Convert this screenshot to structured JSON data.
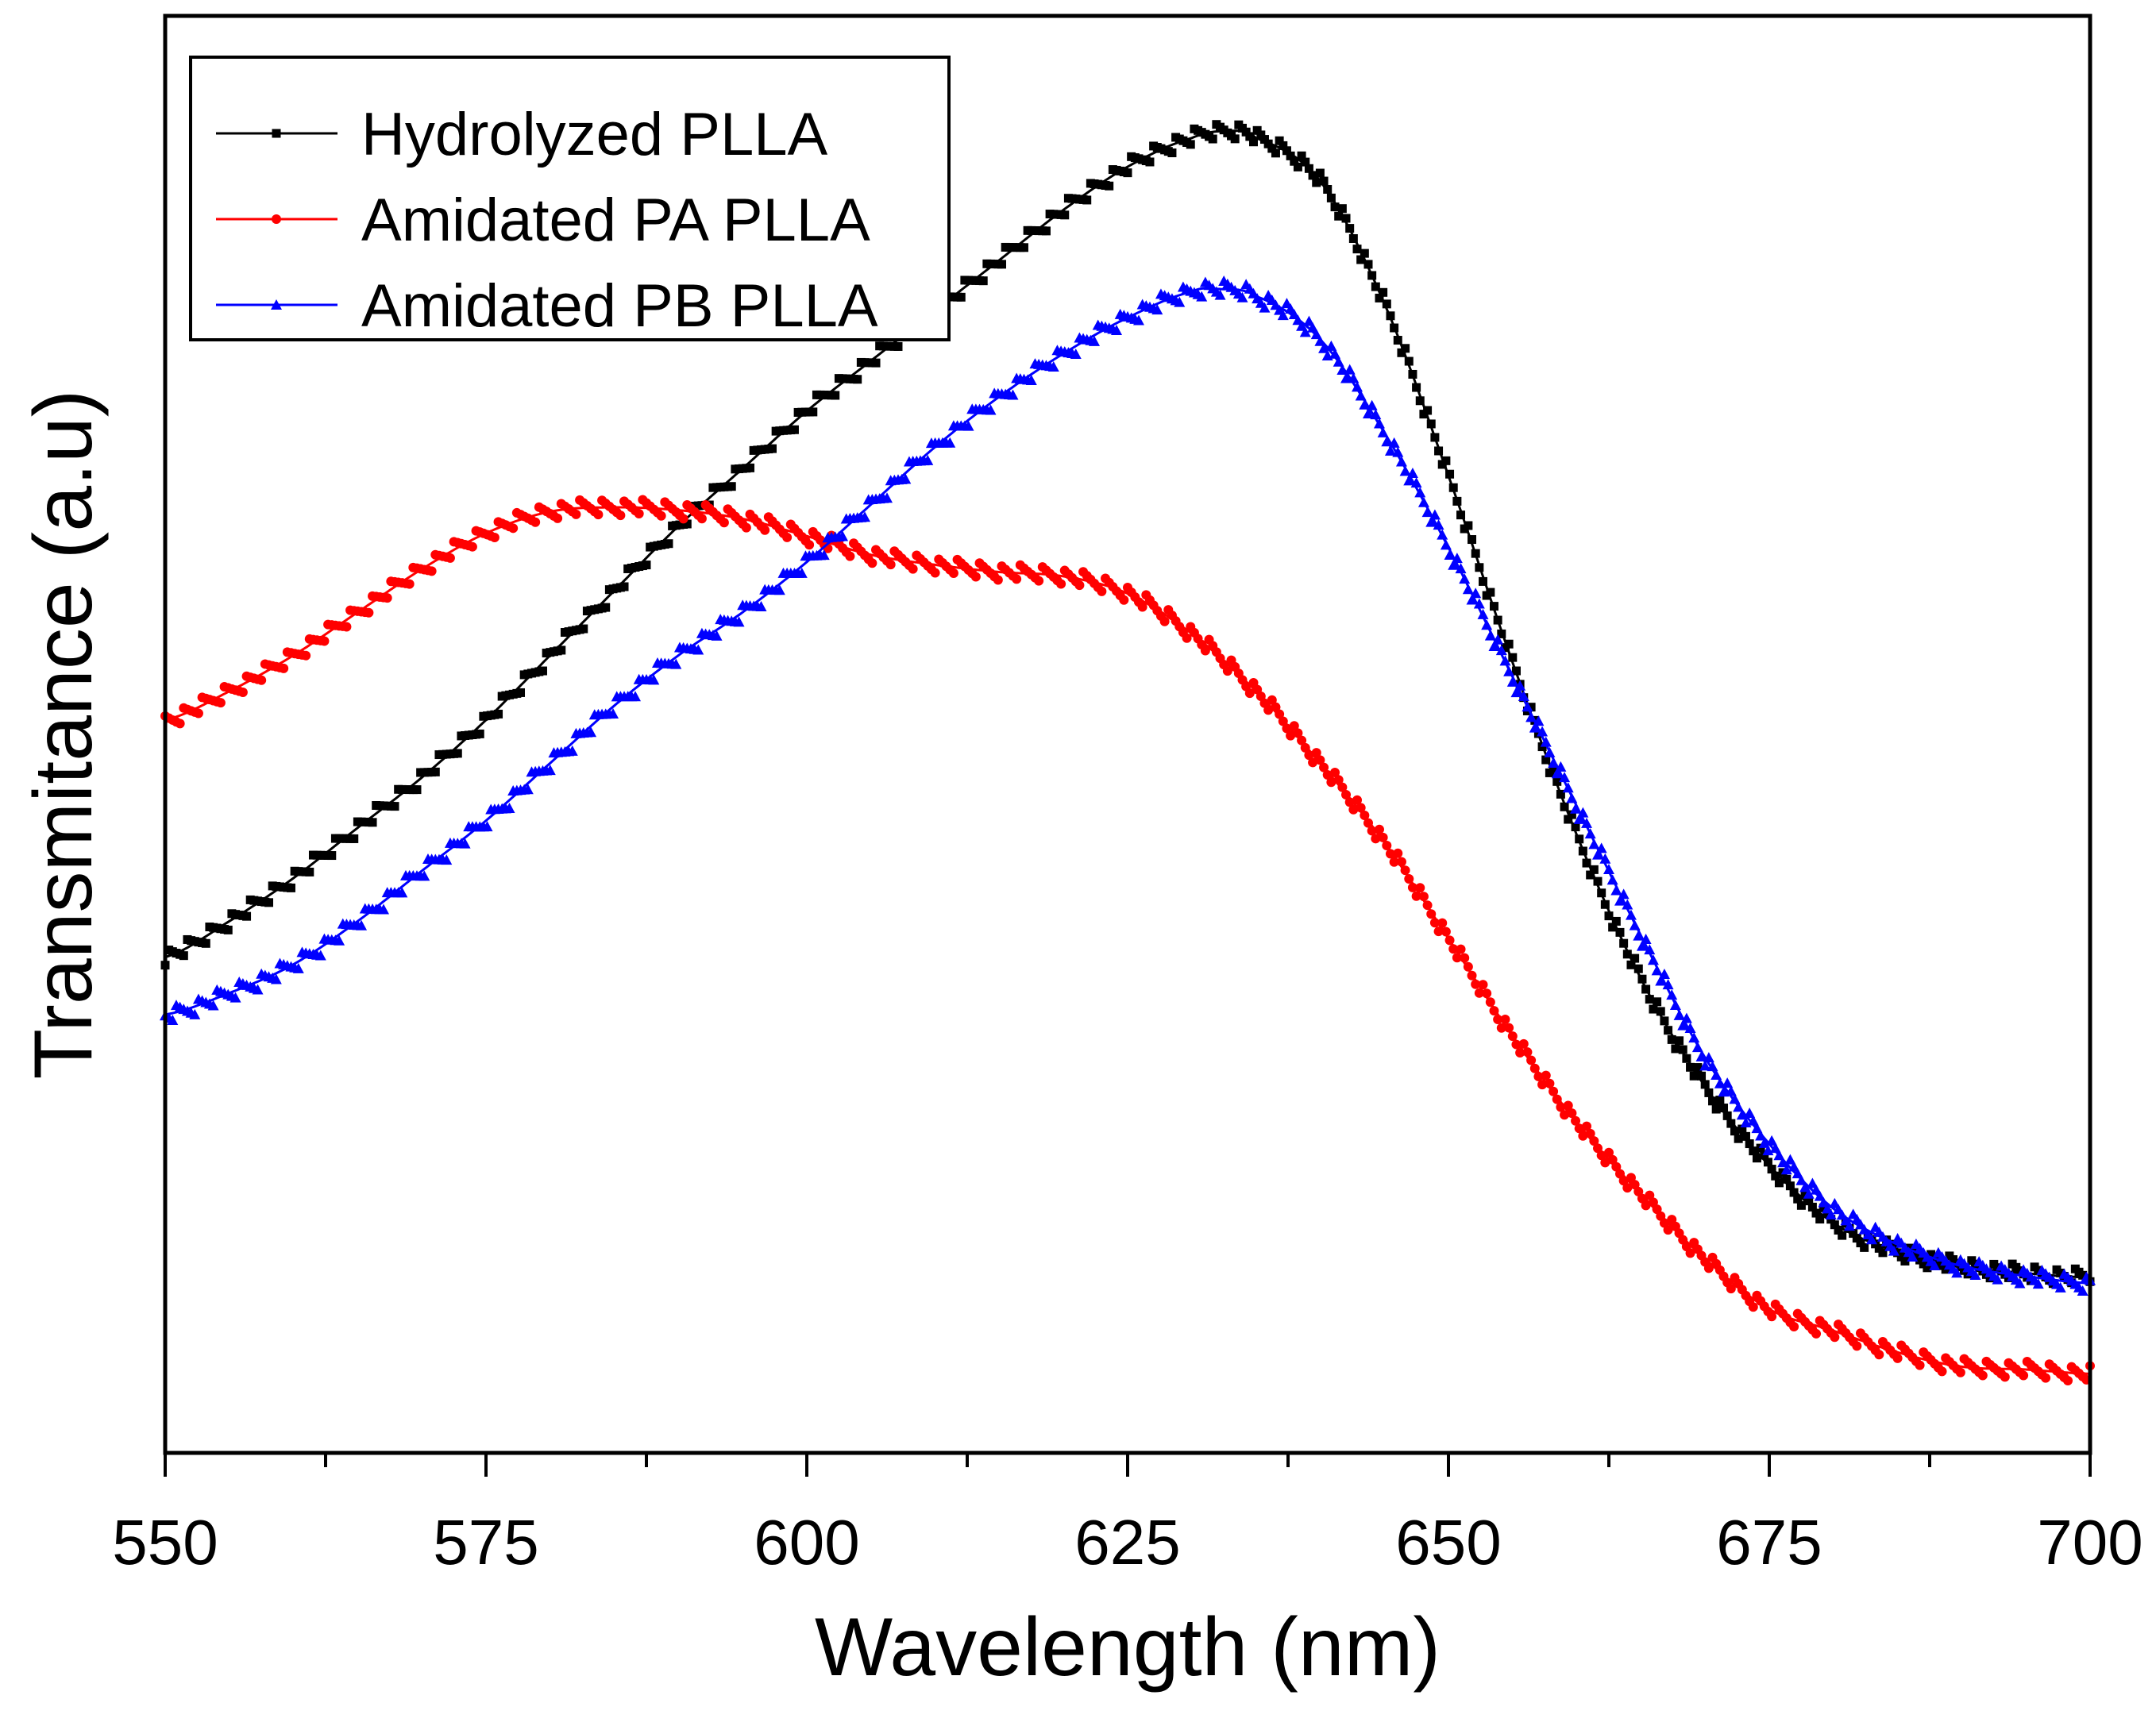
{
  "chart_data": {
    "type": "scatter",
    "title": "",
    "xlabel": "Wavelength (nm)",
    "ylabel": "Transmitance (a.u)",
    "xlim": [
      550,
      700
    ],
    "ylim": [
      0,
      100
    ],
    "xticks": [
      550,
      575,
      600,
      625,
      650,
      675,
      700
    ],
    "xtick_labels": [
      "550",
      "575",
      "600",
      "625",
      "650",
      "675",
      "700"
    ],
    "yticks_visible": false,
    "grid": false,
    "legend_position": "top-left",
    "series": [
      {
        "name": "Hydrolyzed PLLA",
        "color": "#000000",
        "marker": "square",
        "x": [
          550,
          555,
          560,
          565,
          570,
          575,
          580,
          585,
          590,
          595,
          600,
          605,
          610,
          615,
          620,
          625,
          630,
          633,
          635,
          640,
          645,
          650,
          655,
          660,
          665,
          670,
          675,
          680,
          685,
          690,
          695,
          700
        ],
        "y": [
          34.5,
          37,
          40,
          43.5,
          47,
          51,
          55.5,
          60,
          64.5,
          68.5,
          72.5,
          76,
          79.5,
          83,
          86.5,
          89.5,
          91.5,
          92,
          91.5,
          88.5,
          80,
          68,
          55,
          43,
          33,
          25.5,
          20,
          16,
          14,
          13,
          12.5,
          12.2
        ]
      },
      {
        "name": "Amidated PA PLLA",
        "color": "#ff0000",
        "marker": "circle",
        "x": [
          550,
          555,
          560,
          565,
          570,
          575,
          580,
          585,
          590,
          595,
          600,
          605,
          610,
          615,
          620,
          625,
          630,
          635,
          640,
          645,
          650,
          655,
          660,
          665,
          670,
          675,
          680,
          685,
          690,
          695,
          700
        ],
        "y": [
          51,
          53,
          55.5,
          58.5,
          61.5,
          64,
          65.5,
          65.8,
          65.6,
          65,
          63.8,
          62.5,
          61.8,
          61.3,
          61,
          59.8,
          57,
          53,
          48,
          42.5,
          35.8,
          29,
          23,
          18,
          13.5,
          10,
          8.5,
          7,
          6,
          5.8,
          5.5
        ]
      },
      {
        "name": "Amidated PB PLLA",
        "color": "#0000ff",
        "marker": "triangle",
        "x": [
          550,
          555,
          560,
          565,
          570,
          575,
          580,
          585,
          590,
          595,
          600,
          605,
          610,
          615,
          620,
          625,
          630,
          632,
          635,
          640,
          645,
          650,
          655,
          660,
          665,
          670,
          675,
          680,
          685,
          690,
          695,
          700
        ],
        "y": [
          30.5,
          32,
          34,
          37,
          40.5,
          44,
          48,
          52,
          55.5,
          58.5,
          62,
          66,
          70,
          73.5,
          76.5,
          79,
          80.8,
          81,
          80.5,
          77.5,
          71,
          63,
          54,
          45,
          36,
          27.5,
          21.5,
          17,
          14.5,
          13,
          12.3,
          11.8
        ]
      }
    ]
  }
}
